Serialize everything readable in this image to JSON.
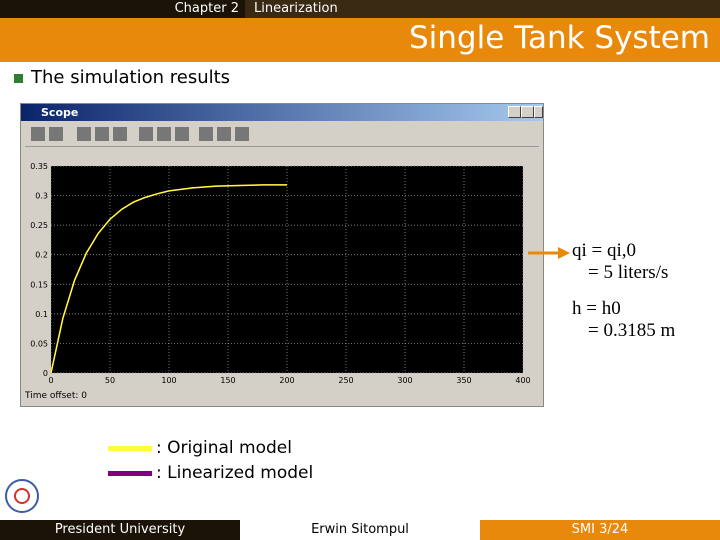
{
  "header": {
    "chapter": "Chapter 2",
    "topic": "Linearization"
  },
  "title": "Single Tank System",
  "bullet": "The simulation results",
  "window": {
    "title": "Scope",
    "time_offset": "Time offset:  0"
  },
  "chart_data": {
    "type": "line",
    "x": [
      0,
      10,
      20,
      30,
      40,
      50,
      60,
      70,
      80,
      90,
      100,
      120,
      140,
      160,
      180,
      200
    ],
    "series": [
      {
        "name": ": Linearized model",
        "color": "#800080",
        "values": [
          0,
          0.092,
          0.157,
          0.203,
          0.236,
          0.26,
          0.277,
          0.289,
          0.297,
          0.303,
          0.308,
          0.313,
          0.316,
          0.317,
          0.318,
          0.318
        ]
      },
      {
        "name": ": Original model",
        "color": "#ffff33",
        "values": [
          0,
          0.092,
          0.157,
          0.203,
          0.236,
          0.26,
          0.277,
          0.289,
          0.297,
          0.303,
          0.308,
          0.313,
          0.316,
          0.317,
          0.318,
          0.318
        ]
      }
    ],
    "xlim": [
      0,
      400
    ],
    "xticks": [
      0,
      50,
      100,
      150,
      200,
      250,
      300,
      350,
      400
    ],
    "ylim": [
      0,
      0.35
    ],
    "yticks": [
      0,
      0.05,
      0.1,
      0.15,
      0.2,
      0.25,
      0.3,
      0.35
    ],
    "grid": true
  },
  "equations": [
    {
      "lhs": "qi = qi,0",
      "rhs": "= 5  liters/s"
    },
    {
      "lhs": "h = h0",
      "rhs": "= 0.3185 m"
    }
  ],
  "footer": {
    "left": "President University",
    "center": "Erwin Sitompul",
    "right": "SMI 3/24"
  }
}
